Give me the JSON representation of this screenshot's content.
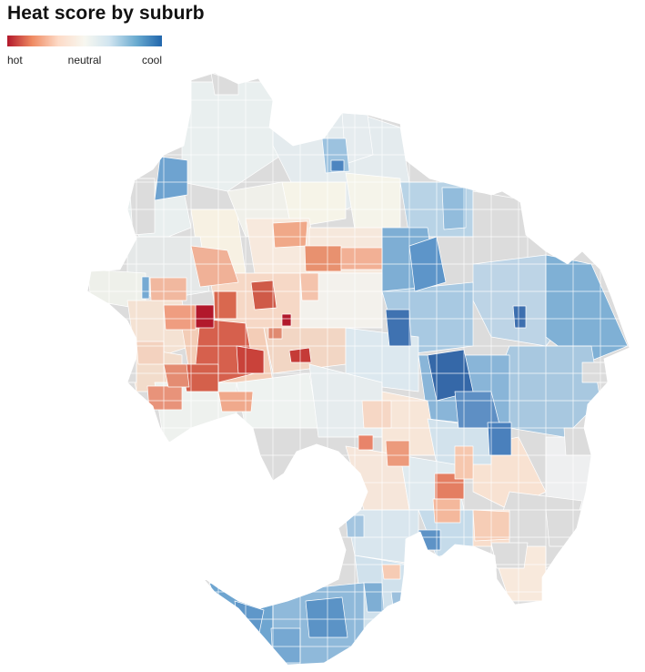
{
  "title": "Heat score by suburb",
  "legend": {
    "low_label": "hot",
    "mid_label": "neutral",
    "high_label": "cool",
    "colors": [
      "#b2182b",
      "#ef8a62",
      "#fddbc7",
      "#f7f7f0",
      "#d1e5f0",
      "#67a9cf",
      "#2166ac"
    ]
  },
  "map": {
    "no_data_color": "#dcdcdc",
    "scale_min": -1,
    "scale_max": 1
  }
}
